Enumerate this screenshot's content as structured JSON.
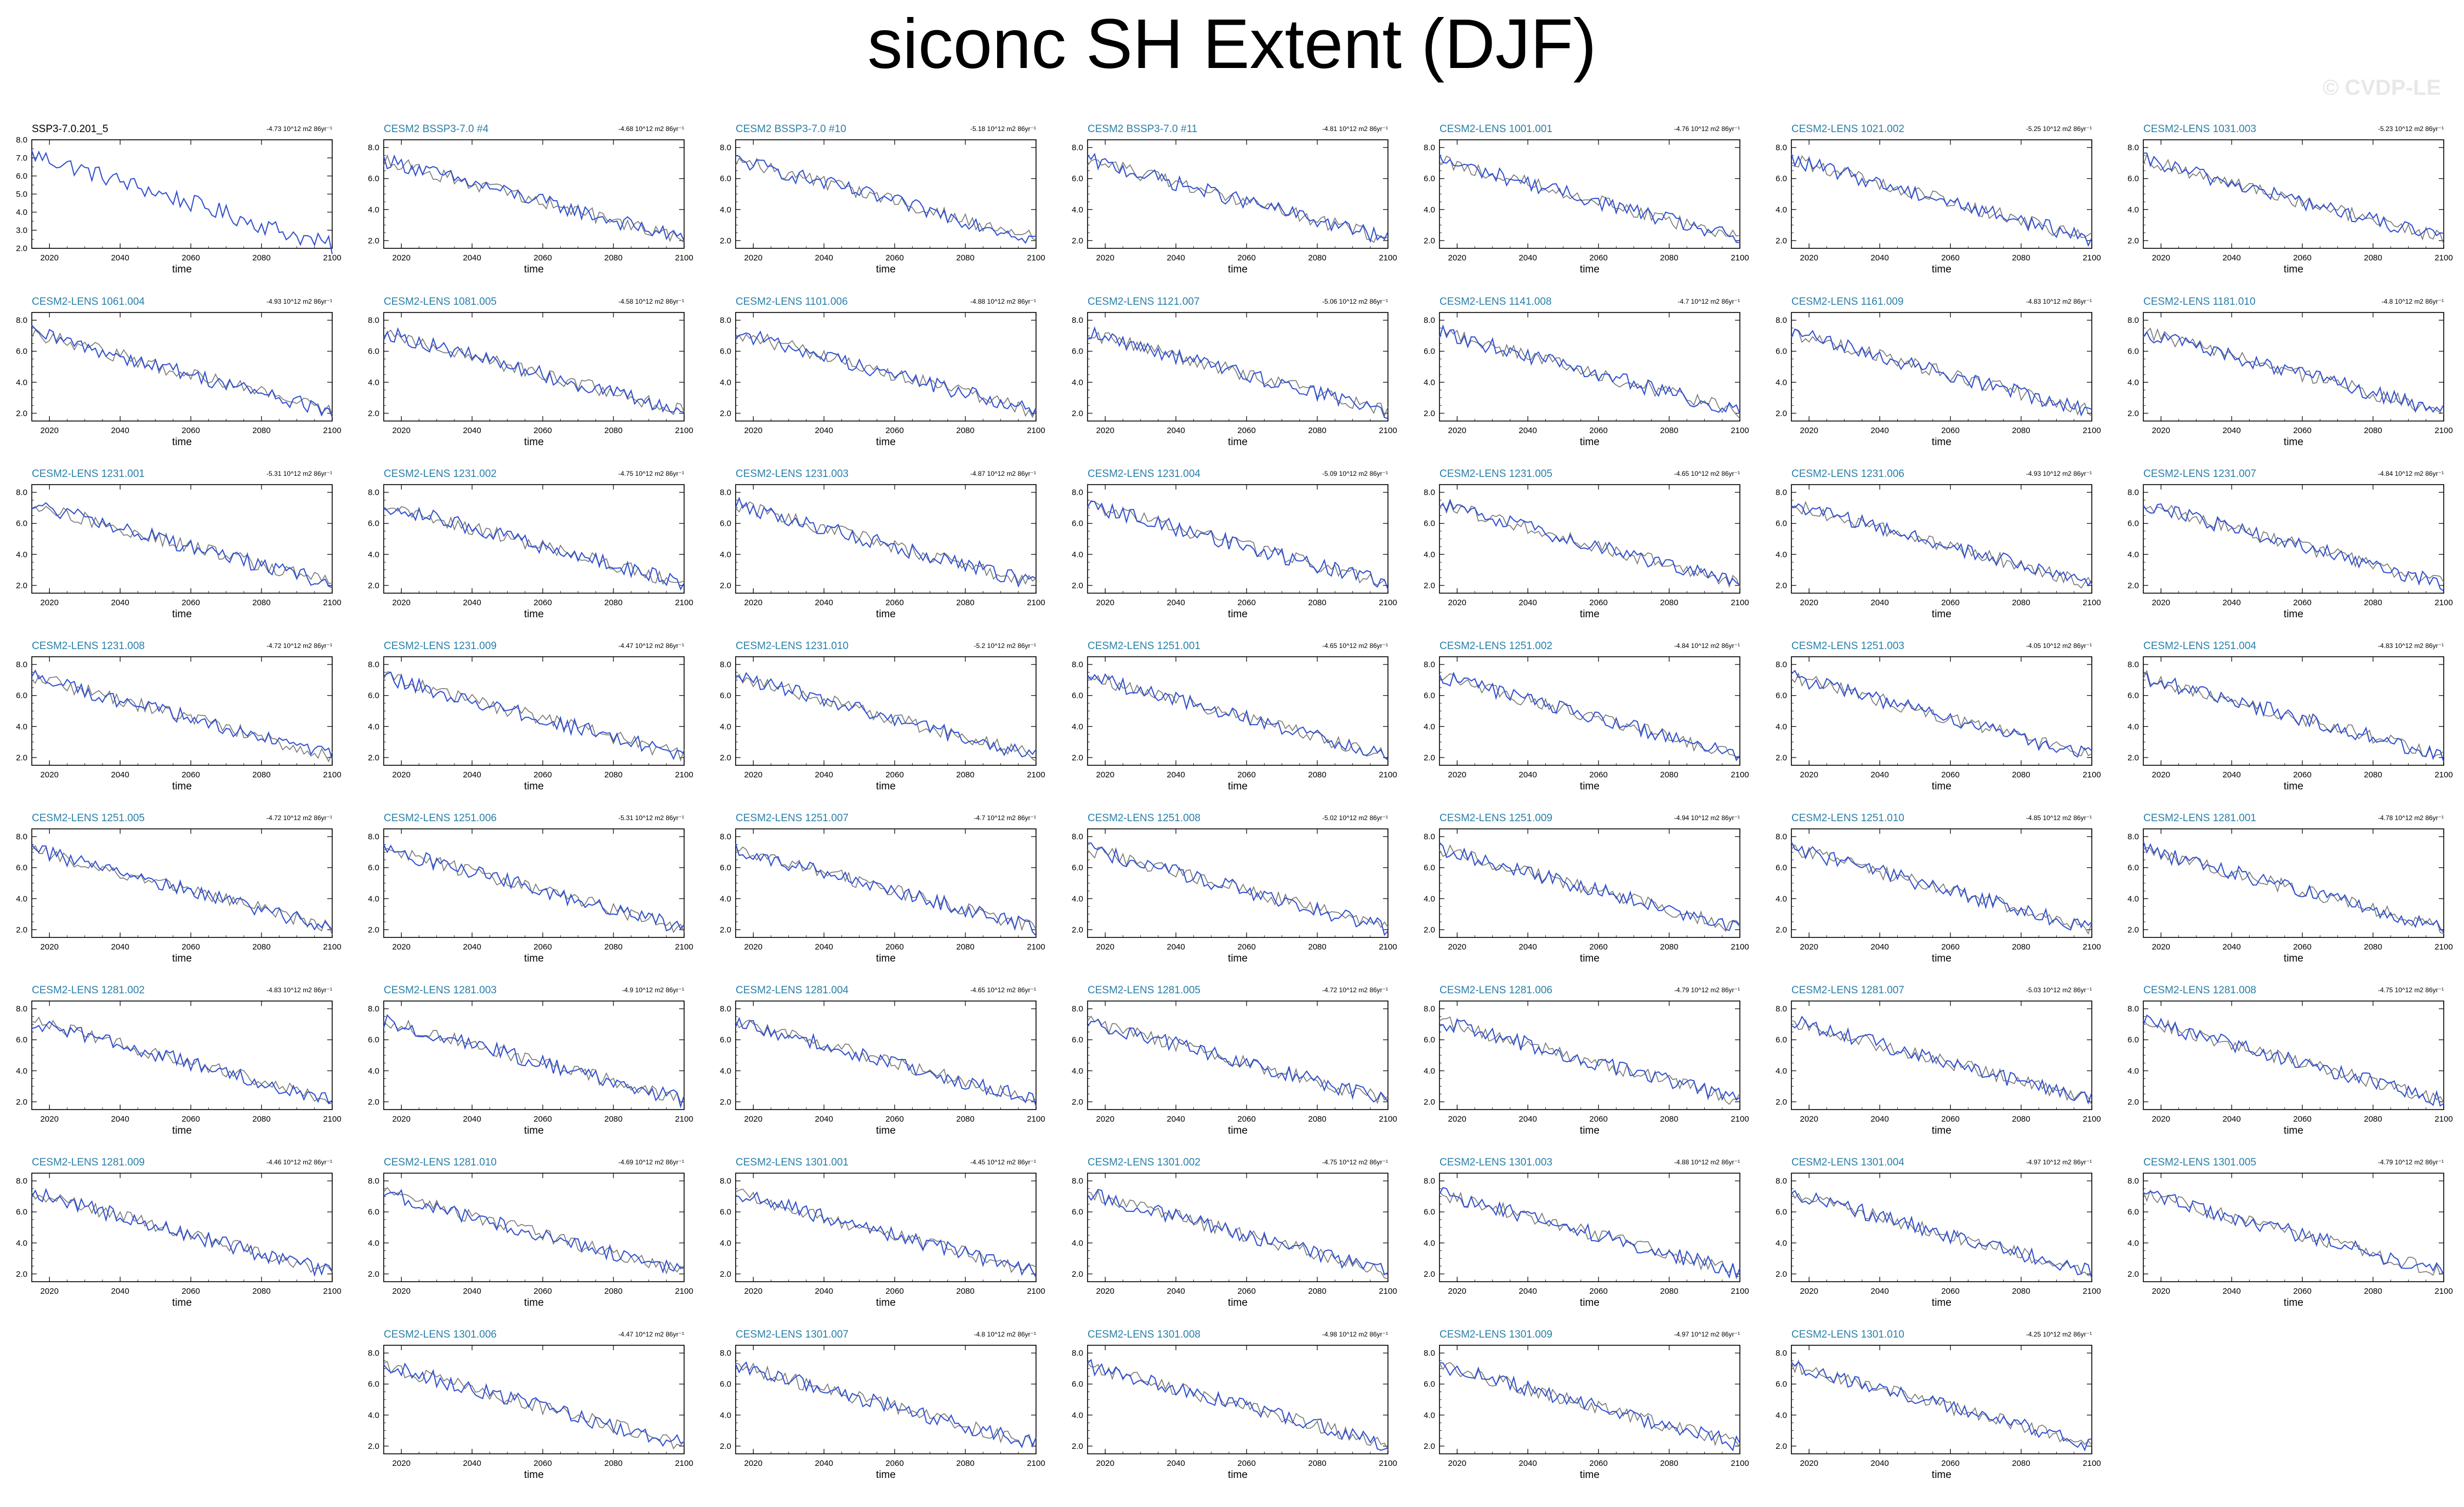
{
  "figure": {
    "title": "siconc SH Extent (DJF)",
    "watermark": "© CVDP-LE",
    "colors": {
      "background": "#ffffff",
      "obs_line": "#2d6a8a",
      "sim_line": "#2f4fcf",
      "ens_line": "#777777",
      "label_ref": "#000000",
      "label_sim": "#2a7fa8"
    }
  },
  "chart_data": {
    "type": "line",
    "shared": {
      "xlabel": "time",
      "x_ticks": [
        2020,
        2040,
        2060,
        2080,
        2100
      ],
      "y_ticks": [
        "2.0",
        "4.0",
        "6.0",
        "8.0"
      ],
      "xlim": [
        2015,
        2100
      ],
      "y_start": 7.2,
      "y_end": 2.1
    },
    "panels": [
      {
        "name": "SSP3-7.0.201_5",
        "trend": "-4.73 10^12 m2 86yr⁻¹",
        "reference": true,
        "ylim": [
          2.0,
          8.0
        ],
        "y_ticks": [
          "2.0",
          "3.0",
          "4.0",
          "5.0",
          "6.0",
          "7.0",
          "8.0"
        ],
        "x_ticks": [
          2020,
          2040,
          2060,
          2080,
          2100
        ],
        "xlim": [
          2015,
          2100
        ]
      },
      {
        "name": "CESM2 BSSP3-7.0 #4",
        "trend": "-4.68 10^12 m2 86yr⁻¹"
      },
      {
        "name": "CESM2 BSSP3-7.0 #10",
        "trend": "-5.18 10^12 m2 86yr⁻¹"
      },
      {
        "name": "CESM2 BSSP3-7.0 #11",
        "trend": "-4.81 10^12 m2 86yr⁻¹"
      },
      {
        "name": "CESM2-LENS 1001.001",
        "trend": "-4.76 10^12 m2 86yr⁻¹"
      },
      {
        "name": "CESM2-LENS 1021.002",
        "trend": "-5.25 10^12 m2 86yr⁻¹"
      },
      {
        "name": "CESM2-LENS 1031.003",
        "trend": "-5.23 10^12 m2 86yr⁻¹"
      },
      {
        "name": "CESM2-LENS 1061.004",
        "trend": "-4.93 10^12 m2 86yr⁻¹"
      },
      {
        "name": "CESM2-LENS 1081.005",
        "trend": "-4.58 10^12 m2 86yr⁻¹"
      },
      {
        "name": "CESM2-LENS 1101.006",
        "trend": "-4.88 10^12 m2 86yr⁻¹"
      },
      {
        "name": "CESM2-LENS 1121.007",
        "trend": "-5.06 10^12 m2 86yr⁻¹"
      },
      {
        "name": "CESM2-LENS 1141.008",
        "trend": "-4.7 10^12 m2 86yr⁻¹"
      },
      {
        "name": "CESM2-LENS 1161.009",
        "trend": "-4.83 10^12 m2 86yr⁻¹"
      },
      {
        "name": "CESM2-LENS 1181.010",
        "trend": "-4.8 10^12 m2 86yr⁻¹"
      },
      {
        "name": "CESM2-LENS 1231.001",
        "trend": "-5.31 10^12 m2 86yr⁻¹"
      },
      {
        "name": "CESM2-LENS 1231.002",
        "trend": "-4.75 10^12 m2 86yr⁻¹"
      },
      {
        "name": "CESM2-LENS 1231.003",
        "trend": "-4.87 10^12 m2 86yr⁻¹"
      },
      {
        "name": "CESM2-LENS 1231.004",
        "trend": "-5.09 10^12 m2 86yr⁻¹"
      },
      {
        "name": "CESM2-LENS 1231.005",
        "trend": "-4.65 10^12 m2 86yr⁻¹"
      },
      {
        "name": "CESM2-LENS 1231.006",
        "trend": "-4.93 10^12 m2 86yr⁻¹"
      },
      {
        "name": "CESM2-LENS 1231.007",
        "trend": "-4.84 10^12 m2 86yr⁻¹"
      },
      {
        "name": "CESM2-LENS 1231.008",
        "trend": "-4.72 10^12 m2 86yr⁻¹"
      },
      {
        "name": "CESM2-LENS 1231.009",
        "trend": "-4.47 10^12 m2 86yr⁻¹"
      },
      {
        "name": "CESM2-LENS 1231.010",
        "trend": "-5.2 10^12 m2 86yr⁻¹"
      },
      {
        "name": "CESM2-LENS 1251.001",
        "trend": "-4.65 10^12 m2 86yr⁻¹"
      },
      {
        "name": "CESM2-LENS 1251.002",
        "trend": "-4.84 10^12 m2 86yr⁻¹"
      },
      {
        "name": "CESM2-LENS 1251.003",
        "trend": "-4.05 10^12 m2 86yr⁻¹"
      },
      {
        "name": "CESM2-LENS 1251.004",
        "trend": "-4.83 10^12 m2 86yr⁻¹"
      },
      {
        "name": "CESM2-LENS 1251.005",
        "trend": "-4.72 10^12 m2 86yr⁻¹"
      },
      {
        "name": "CESM2-LENS 1251.006",
        "trend": "-5.31 10^12 m2 86yr⁻¹"
      },
      {
        "name": "CESM2-LENS 1251.007",
        "trend": "-4.7 10^12 m2 86yr⁻¹"
      },
      {
        "name": "CESM2-LENS 1251.008",
        "trend": "-5.02 10^12 m2 86yr⁻¹"
      },
      {
        "name": "CESM2-LENS 1251.009",
        "trend": "-4.94 10^12 m2 86yr⁻¹"
      },
      {
        "name": "CESM2-LENS 1251.010",
        "trend": "-4.85 10^12 m2 86yr⁻¹"
      },
      {
        "name": "CESM2-LENS 1281.001",
        "trend": "-4.78 10^12 m2 86yr⁻¹"
      },
      {
        "name": "CESM2-LENS 1281.002",
        "trend": "-4.83 10^12 m2 86yr⁻¹"
      },
      {
        "name": "CESM2-LENS 1281.003",
        "trend": "-4.9 10^12 m2 86yr⁻¹"
      },
      {
        "name": "CESM2-LENS 1281.004",
        "trend": "-4.65 10^12 m2 86yr⁻¹"
      },
      {
        "name": "CESM2-LENS 1281.005",
        "trend": "-4.72 10^12 m2 86yr⁻¹"
      },
      {
        "name": "CESM2-LENS 1281.006",
        "trend": "-4.79 10^12 m2 86yr⁻¹"
      },
      {
        "name": "CESM2-LENS 1281.007",
        "trend": "-5.03 10^12 m2 86yr⁻¹"
      },
      {
        "name": "CESM2-LENS 1281.008",
        "trend": "-4.75 10^12 m2 86yr⁻¹"
      },
      {
        "name": "CESM2-LENS 1281.009",
        "trend": "-4.46 10^12 m2 86yr⁻¹"
      },
      {
        "name": "CESM2-LENS 1281.010",
        "trend": "-4.69 10^12 m2 86yr⁻¹"
      },
      {
        "name": "CESM2-LENS 1301.001",
        "trend": "-4.45 10^12 m2 86yr⁻¹"
      },
      {
        "name": "CESM2-LENS 1301.002",
        "trend": "-4.75 10^12 m2 86yr⁻¹"
      },
      {
        "name": "CESM2-LENS 1301.003",
        "trend": "-4.88 10^12 m2 86yr⁻¹"
      },
      {
        "name": "CESM2-LENS 1301.004",
        "trend": "-4.97 10^12 m2 86yr⁻¹"
      },
      {
        "name": "CESM2-LENS 1301.005",
        "trend": "-4.79 10^12 m2 86yr⁻¹"
      },
      {
        "name": "CESM2-LENS 1301.006",
        "trend": "-4.47 10^12 m2 86yr⁻¹"
      },
      {
        "name": "CESM2-LENS 1301.007",
        "trend": "-4.8 10^12 m2 86yr⁻¹"
      },
      {
        "name": "CESM2-LENS 1301.008",
        "trend": "-4.98 10^12 m2 86yr⁻¹"
      },
      {
        "name": "CESM2-LENS 1301.009",
        "trend": "-4.97 10^12 m2 86yr⁻¹"
      },
      {
        "name": "CESM2-LENS 1301.010",
        "trend": "-4.25 10^12 m2 86yr⁻¹"
      }
    ]
  }
}
